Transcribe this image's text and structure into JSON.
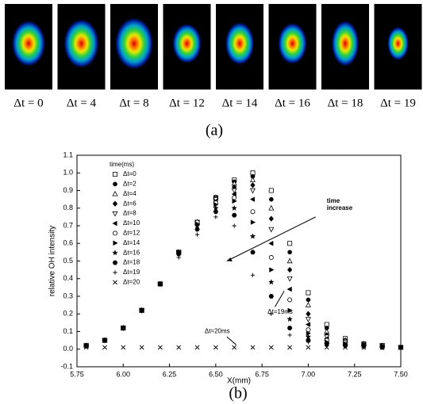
{
  "images": [
    {
      "label": "Δt = 0"
    },
    {
      "label": "Δt = 4"
    },
    {
      "label": "Δt = 8"
    },
    {
      "label": "Δt = 12"
    },
    {
      "label": "Δt = 14"
    },
    {
      "label": "Δt = 16"
    },
    {
      "label": "Δt = 18"
    },
    {
      "label": "Δt = 19"
    }
  ],
  "caption_a": "(a)",
  "caption_b": "(b)",
  "chart_data": {
    "type": "scatter",
    "x_label": "X(mm)",
    "y_label": "relative OH intensity",
    "legend_title": "time(ms)",
    "annotations": [
      "time",
      "increase",
      "Δt=19ms",
      "Δt=20ms"
    ],
    "x": [
      5.8,
      5.9,
      6.0,
      6.1,
      6.2,
      6.3,
      6.4,
      6.5,
      6.6,
      6.7,
      6.8,
      6.9,
      7.0,
      7.1,
      7.2,
      7.3,
      7.4,
      7.5
    ],
    "series": [
      {
        "name": "Δt=0",
        "marker": "square",
        "color": "#000",
        "values": [
          0.02,
          0.05,
          0.12,
          0.22,
          0.37,
          0.55,
          0.72,
          0.86,
          0.96,
          1.0,
          0.9,
          0.6,
          0.32,
          0.14,
          0.06,
          0.03,
          0.02,
          0.01
        ]
      },
      {
        "name": "Δt=2",
        "marker": "circle-filled",
        "color": "#000",
        "values": [
          0.02,
          0.05,
          0.12,
          0.22,
          0.37,
          0.55,
          0.72,
          0.86,
          0.95,
          0.98,
          0.85,
          0.55,
          0.28,
          0.12,
          0.05,
          0.03,
          0.02,
          0.01
        ]
      },
      {
        "name": "Δt=4",
        "marker": "triangle",
        "color": "#000",
        "values": [
          0.02,
          0.05,
          0.12,
          0.22,
          0.37,
          0.55,
          0.72,
          0.86,
          0.94,
          0.96,
          0.8,
          0.5,
          0.25,
          0.1,
          0.05,
          0.03,
          0.02,
          0.01
        ]
      },
      {
        "name": "Δt=6",
        "marker": "diamond",
        "color": "#000",
        "values": [
          0.02,
          0.05,
          0.12,
          0.22,
          0.37,
          0.55,
          0.72,
          0.85,
          0.92,
          0.93,
          0.74,
          0.45,
          0.2,
          0.08,
          0.04,
          0.02,
          0.02,
          0.01
        ]
      },
      {
        "name": "Δt=8",
        "marker": "triangle-down",
        "color": "#000",
        "values": [
          0.02,
          0.05,
          0.12,
          0.22,
          0.37,
          0.55,
          0.72,
          0.85,
          0.9,
          0.9,
          0.68,
          0.4,
          0.17,
          0.07,
          0.04,
          0.02,
          0.02,
          0.01
        ]
      },
      {
        "name": "Δt=10",
        "marker": "triangle-left",
        "color": "#000",
        "values": [
          0.02,
          0.05,
          0.12,
          0.22,
          0.37,
          0.55,
          0.72,
          0.84,
          0.88,
          0.85,
          0.6,
          0.34,
          0.14,
          0.06,
          0.03,
          0.02,
          0.02,
          0.01
        ]
      },
      {
        "name": "Δt=12",
        "marker": "circle",
        "color": "#000",
        "values": [
          0.02,
          0.05,
          0.12,
          0.22,
          0.37,
          0.55,
          0.72,
          0.83,
          0.86,
          0.78,
          0.52,
          0.28,
          0.11,
          0.05,
          0.03,
          0.02,
          0.02,
          0.01
        ]
      },
      {
        "name": "Δt=14",
        "marker": "triangle-right",
        "color": "#000",
        "values": [
          0.02,
          0.05,
          0.12,
          0.22,
          0.37,
          0.55,
          0.71,
          0.82,
          0.84,
          0.72,
          0.45,
          0.22,
          0.09,
          0.04,
          0.03,
          0.02,
          0.02,
          0.01
        ]
      },
      {
        "name": "Δt=16",
        "marker": "star",
        "color": "#000",
        "values": [
          0.02,
          0.05,
          0.12,
          0.22,
          0.37,
          0.55,
          0.7,
          0.8,
          0.8,
          0.64,
          0.38,
          0.17,
          0.07,
          0.03,
          0.02,
          0.02,
          0.01,
          0.01
        ]
      },
      {
        "name": "Δt=18",
        "marker": "hexagon",
        "color": "#000",
        "values": [
          0.02,
          0.05,
          0.12,
          0.22,
          0.37,
          0.54,
          0.68,
          0.78,
          0.76,
          0.55,
          0.3,
          0.12,
          0.05,
          0.03,
          0.02,
          0.02,
          0.01,
          0.01
        ]
      },
      {
        "name": "Δt=19",
        "marker": "plus",
        "color": "#000",
        "values": [
          0.02,
          0.05,
          0.12,
          0.22,
          0.37,
          0.52,
          0.65,
          0.75,
          0.7,
          0.42,
          0.2,
          0.08,
          0.04,
          0.02,
          0.02,
          0.01,
          0.01,
          0.01
        ]
      },
      {
        "name": "Δt=20",
        "marker": "cross",
        "color": "#000",
        "values": [
          0.01,
          0.01,
          0.01,
          0.01,
          0.01,
          0.01,
          0.01,
          0.01,
          0.01,
          0.01,
          0.01,
          0.01,
          0.01,
          0.01,
          0.01,
          0.01,
          0.01,
          0.01
        ]
      }
    ],
    "xlim": [
      5.75,
      7.5
    ],
    "ylim": [
      -0.1,
      1.1
    ],
    "xticks": [
      5.75,
      {
        "value": 6,
        "label": "6.00"
      },
      6.25,
      {
        "value": 6.5,
        "label": "6.50"
      },
      6.75,
      {
        "value": 7,
        "label": "7.00"
      },
      7.25,
      {
        "value": 7.5,
        "label": "7.50"
      }
    ],
    "yticks": [
      -0.1,
      {
        "value": 0,
        "label": "0.0"
      },
      0.1,
      0.2,
      0.3,
      0.4,
      0.5,
      0.6,
      0.7,
      0.8,
      0.9,
      {
        "value": 1,
        "label": "1.0"
      },
      1.1
    ]
  }
}
